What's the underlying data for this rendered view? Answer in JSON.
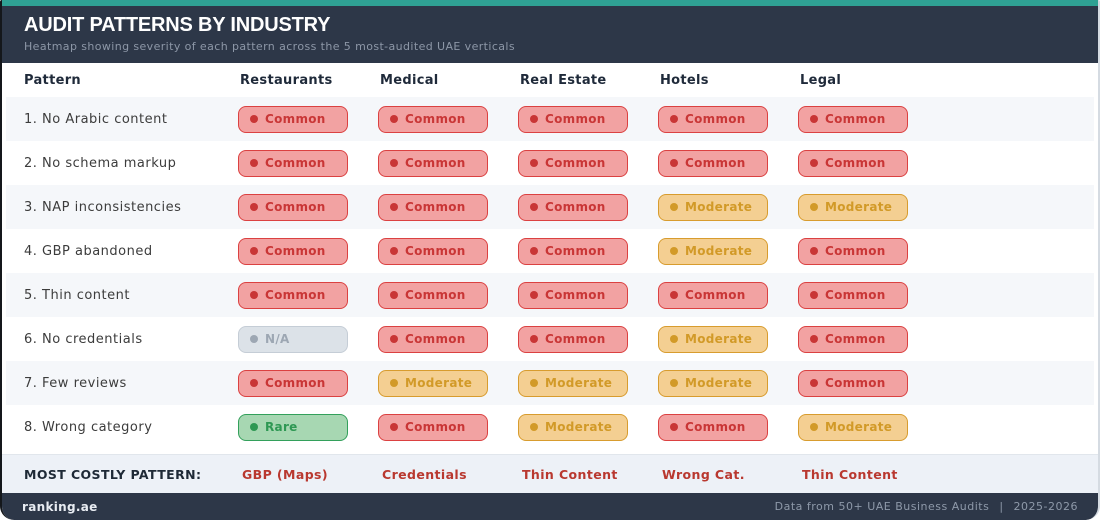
{
  "chart_data": {
    "type": "heatmap",
    "title": "AUDIT PATTERNS BY INDUSTRY",
    "subtitle": "Heatmap showing severity of each pattern across the 5 most-audited UAE verticals",
    "pattern_column_header": "Pattern",
    "industries": [
      "Restaurants",
      "Medical",
      "Real Estate",
      "Hotels",
      "Legal"
    ],
    "patterns": [
      "1. No Arabic content",
      "2. No schema markup",
      "3. NAP inconsistencies",
      "4. GBP abandoned",
      "5. Thin content",
      "6. No credentials",
      "7. Few reviews",
      "8. Wrong category"
    ],
    "severity_matrix": [
      [
        "common",
        "common",
        "common",
        "common",
        "common"
      ],
      [
        "common",
        "common",
        "common",
        "common",
        "common"
      ],
      [
        "common",
        "common",
        "common",
        "moderate",
        "moderate"
      ],
      [
        "common",
        "common",
        "common",
        "moderate",
        "common"
      ],
      [
        "common",
        "common",
        "common",
        "common",
        "common"
      ],
      [
        "na",
        "common",
        "common",
        "moderate",
        "common"
      ],
      [
        "common",
        "moderate",
        "moderate",
        "moderate",
        "common"
      ],
      [
        "rare",
        "common",
        "moderate",
        "common",
        "moderate"
      ]
    ],
    "severity_levels": {
      "common": {
        "label": "Common",
        "bg": "#F2A2A2",
        "border": "#DB4141",
        "text": "#C93636"
      },
      "moderate": {
        "label": "Moderate",
        "bg": "#F4CF92",
        "border": "#D89C2E",
        "text": "#D29A28"
      },
      "rare": {
        "label": "Rare",
        "bg": "#A7D7B2",
        "border": "#33A05B",
        "text": "#2E9853"
      },
      "na": {
        "label": "N/A",
        "bg": "#DCE2E8",
        "border": "#C5CDD6",
        "text": "#9DA7B3"
      }
    },
    "most_costly": {
      "label": "MOST COSTLY PATTERN:",
      "values": [
        "GBP (Maps)",
        "Credentials",
        "Thin Content",
        "Wrong Cat.",
        "Thin Content"
      ]
    },
    "accent_colors": {
      "top_bar": "#2fa194",
      "header_bg": "#2d3748",
      "costly_text": "#b9382f"
    }
  },
  "footer": {
    "brand": "ranking.ae",
    "source": "Data from 50+ UAE Business Audits",
    "separator": "|",
    "years": "2025-2026"
  }
}
